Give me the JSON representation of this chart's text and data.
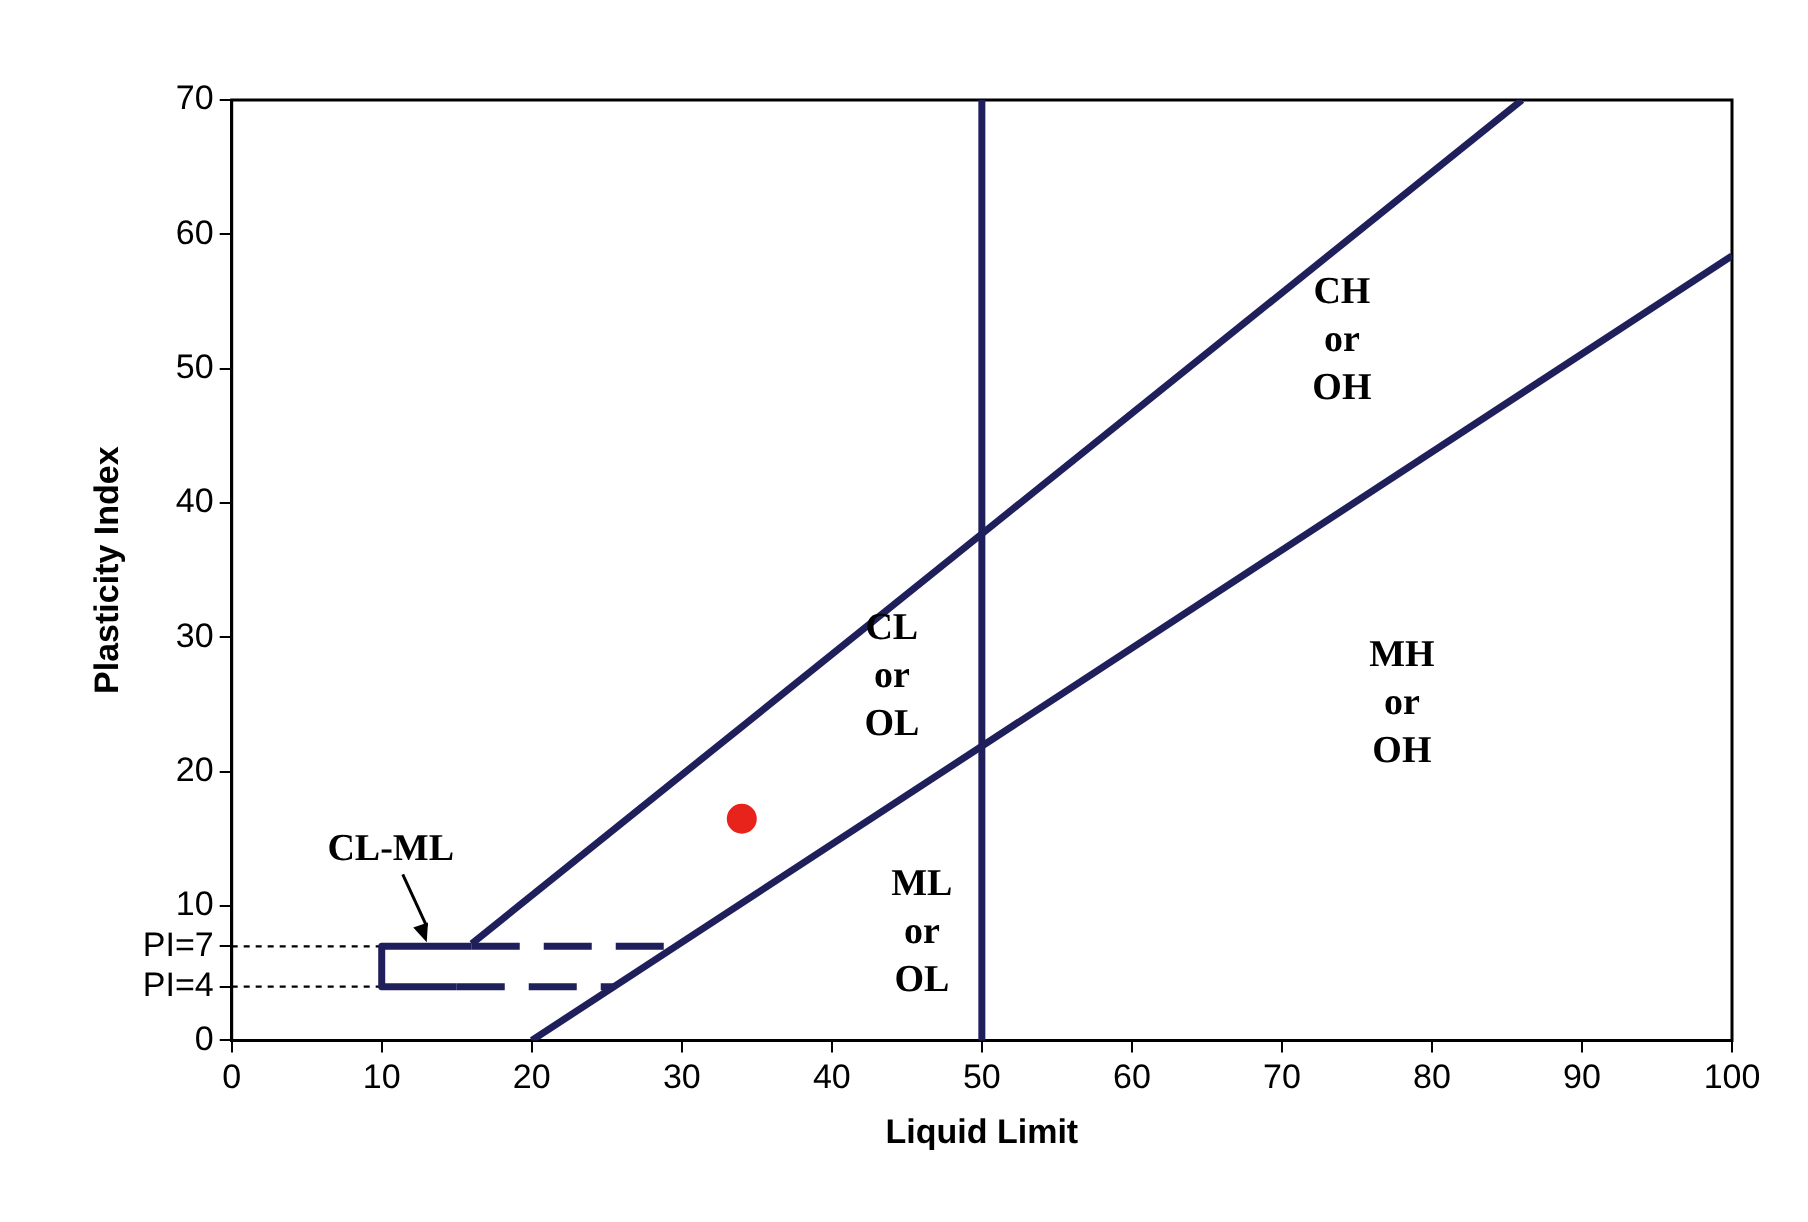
{
  "chart_data": {
    "type": "line",
    "xlabel": "Liquid Limit",
    "ylabel": "Plasticity Index",
    "xlim": [
      0,
      100
    ],
    "ylim": [
      0,
      70
    ],
    "xticks": [
      0,
      10,
      20,
      30,
      40,
      50,
      60,
      70,
      80,
      90,
      100
    ],
    "yticks": [
      0,
      {
        "value": 4,
        "label": "PI=4"
      },
      {
        "value": 7,
        "label": "PI=7"
      },
      10,
      20,
      30,
      40,
      50,
      60,
      70
    ],
    "grid": false,
    "legend": false,
    "marker": "none",
    "series": [
      {
        "color": "#1f1f5c",
        "x": [
          16,
          86
        ],
        "values": [
          7.2,
          70
        ],
        "line_style": "solid"
      },
      {
        "color": "#1f1f5c",
        "x": [
          20,
          100
        ],
        "values": [
          0,
          58.4
        ],
        "line_style": "solid"
      },
      {
        "color": "#1f1f5c",
        "x": [
          15,
          10,
          10,
          16
        ],
        "values": [
          4,
          4,
          7,
          7
        ],
        "line_style": "solid"
      },
      {
        "color": "#1f1f5c",
        "x": [
          16,
          30
        ],
        "values": [
          7,
          7
        ],
        "line_style": "dashed"
      },
      {
        "color": "#1f1f5c",
        "x": [
          15,
          25.5
        ],
        "values": [
          4,
          4
        ],
        "line_style": "dashed"
      },
      {
        "color": "#000000",
        "x": [
          0,
          10
        ],
        "values": [
          7,
          7
        ],
        "line_style": "dotted"
      },
      {
        "color": "#000000",
        "x": [
          0,
          10
        ],
        "values": [
          4,
          4
        ],
        "line_style": "dotted"
      },
      {
        "type": "scatter",
        "color": "#e8231c",
        "x": [
          34
        ],
        "values": [
          16.5
        ],
        "marker": "circle"
      }
    ],
    "ref_lines": [
      {
        "axis": "x",
        "value": 50,
        "color": "#1f1f5c"
      }
    ],
    "annotations": [
      {
        "text": "CL-ML",
        "x": 13,
        "y": 7
      },
      "CL\nor\nOL",
      "ML\nor\nOL",
      "CH\nor\nOH",
      "MH\nor\nOH"
    ]
  }
}
